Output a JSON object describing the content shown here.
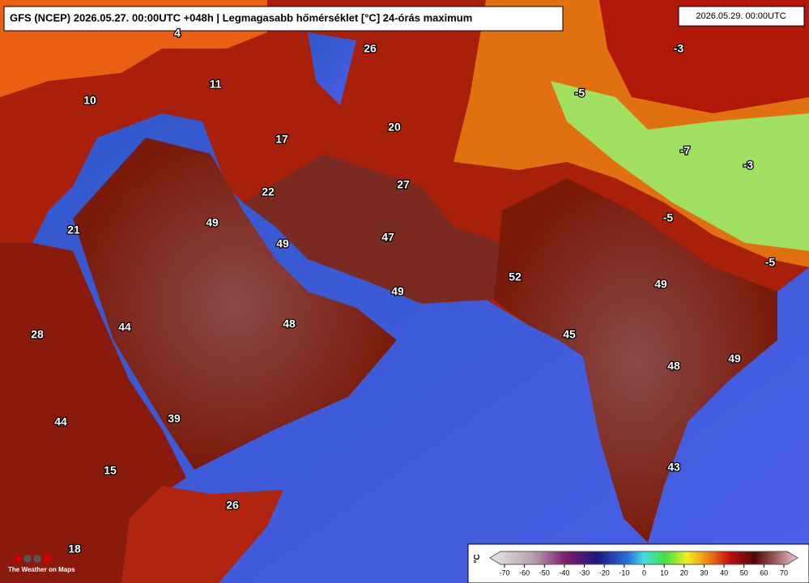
{
  "header": {
    "title": "GFS (NCEP) 2026.05.27. 00:00UTC +048h | Legmagasabb hőmérséklet [°C] 24-órás maximum",
    "valid_time": "2026.05.29. 00:00UTC"
  },
  "labels": [
    4,
    26,
    -3,
    11,
    10,
    -5,
    20,
    17,
    -7,
    -3,
    22,
    27,
    49,
    -5,
    21,
    47,
    49,
    -5,
    52,
    49,
    49,
    48,
    44,
    28,
    45,
    49,
    48,
    44,
    39,
    15,
    43,
    26,
    18
  ],
  "colorbar": {
    "unit": "°C",
    "ticks": [
      -70,
      -60,
      -50,
      -40,
      -30,
      -20,
      -10,
      0,
      10,
      20,
      30,
      40,
      50,
      60,
      70
    ]
  },
  "logo": {
    "text": "The Weather on Maps"
  }
}
